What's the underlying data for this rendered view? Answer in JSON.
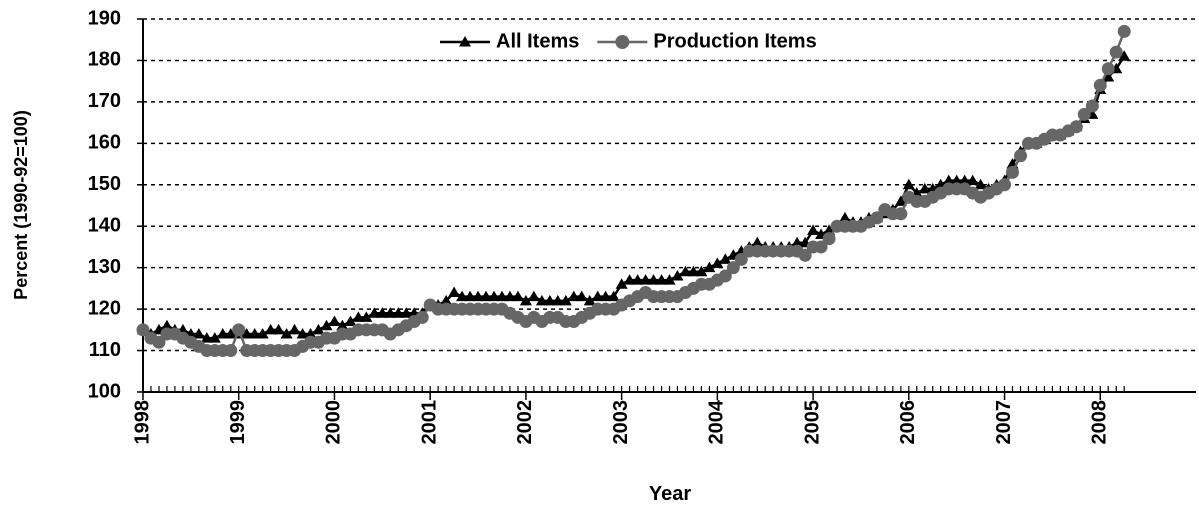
{
  "chart_data": {
    "type": "line",
    "xlabel": "Year",
    "ylabel": "Percent (1990-92=100)",
    "x": [
      1998,
      1998.083,
      1998.167,
      1998.25,
      1998.333,
      1998.417,
      1998.5,
      1998.583,
      1998.667,
      1998.75,
      1998.833,
      1998.917,
      1999,
      1999.083,
      1999.167,
      1999.25,
      1999.333,
      1999.417,
      1999.5,
      1999.583,
      1999.667,
      1999.75,
      1999.833,
      1999.917,
      2000,
      2000.083,
      2000.167,
      2000.25,
      2000.333,
      2000.417,
      2000.5,
      2000.583,
      2000.667,
      2000.75,
      2000.833,
      2000.917,
      2001,
      2001.083,
      2001.167,
      2001.25,
      2001.333,
      2001.417,
      2001.5,
      2001.583,
      2001.667,
      2001.75,
      2001.833,
      2001.917,
      2002,
      2002.083,
      2002.167,
      2002.25,
      2002.333,
      2002.417,
      2002.5,
      2002.583,
      2002.667,
      2002.75,
      2002.833,
      2002.917,
      2003,
      2003.083,
      2003.167,
      2003.25,
      2003.333,
      2003.417,
      2003.5,
      2003.583,
      2003.667,
      2003.75,
      2003.833,
      2003.917,
      2004,
      2004.083,
      2004.167,
      2004.25,
      2004.333,
      2004.417,
      2004.5,
      2004.583,
      2004.667,
      2004.75,
      2004.833,
      2004.917,
      2005,
      2005.083,
      2005.167,
      2005.25,
      2005.333,
      2005.417,
      2005.5,
      2005.583,
      2005.667,
      2005.75,
      2005.833,
      2005.917,
      2006,
      2006.083,
      2006.167,
      2006.25,
      2006.333,
      2006.417,
      2006.5,
      2006.583,
      2006.667,
      2006.75,
      2006.833,
      2006.917,
      2007,
      2007.083,
      2007.167,
      2007.25,
      2007.333,
      2007.417,
      2007.5,
      2007.583,
      2007.667,
      2007.75,
      2007.833,
      2007.917,
      2008,
      2008.083,
      2008.167,
      2008.25
    ],
    "series": [
      {
        "name": "All Items",
        "color": "#000000",
        "marker": "triangle",
        "values": [
          115,
          114,
          115,
          116,
          115,
          115,
          114,
          114,
          113,
          113,
          114,
          114,
          114,
          114,
          114,
          114,
          115,
          115,
          114,
          115,
          114,
          114,
          115,
          116,
          117,
          116,
          117,
          118,
          118,
          119,
          119,
          119,
          119,
          119,
          119,
          119,
          121,
          121,
          122,
          124,
          123,
          123,
          123,
          123,
          123,
          123,
          123,
          123,
          122,
          123,
          122,
          122,
          122,
          122,
          123,
          123,
          122,
          123,
          123,
          123,
          126,
          127,
          127,
          127,
          127,
          127,
          127,
          128,
          129,
          129,
          129,
          130,
          131,
          132,
          133,
          134,
          135,
          136,
          135,
          135,
          135,
          135,
          136,
          136,
          139,
          138,
          139,
          140,
          142,
          141,
          141,
          142,
          142,
          143,
          144,
          146,
          150,
          148,
          149,
          149,
          150,
          151,
          151,
          151,
          151,
          150,
          149,
          150,
          151,
          155,
          158,
          160,
          160,
          161,
          162,
          162,
          163,
          164,
          166,
          167,
          173,
          176,
          178,
          181
        ]
      },
      {
        "name": "Production Items",
        "color": "#666666",
        "marker": "circle",
        "values": [
          115,
          113,
          112,
          114,
          114,
          113,
          112,
          111,
          110,
          110,
          110,
          110,
          115,
          110,
          110,
          110,
          110,
          110,
          110,
          110,
          111,
          112,
          112,
          113,
          113,
          114,
          114,
          115,
          115,
          115,
          115,
          114,
          115,
          116,
          117,
          118,
          121,
          120,
          120,
          120,
          120,
          120,
          120,
          120,
          120,
          120,
          119,
          118,
          117,
          118,
          117,
          118,
          118,
          117,
          117,
          118,
          119,
          120,
          120,
          120,
          121,
          122,
          123,
          124,
          123,
          123,
          123,
          123,
          124,
          125,
          126,
          126,
          127,
          128,
          130,
          132,
          134,
          134,
          134,
          134,
          134,
          134,
          134,
          133,
          135,
          135,
          137,
          140,
          140,
          140,
          140,
          141,
          142,
          144,
          143,
          143,
          147,
          146,
          146,
          147,
          148,
          149,
          149,
          149,
          148,
          147,
          148,
          149,
          150,
          153,
          157,
          160,
          160,
          161,
          162,
          162,
          163,
          164,
          167,
          169,
          174,
          178,
          182,
          187
        ]
      }
    ],
    "xlim": [
      1998,
      2009
    ],
    "xticks": [
      1998,
      1999,
      2000,
      2001,
      2002,
      2003,
      2004,
      2005,
      2006,
      2007,
      2008
    ],
    "ylim": [
      100,
      190
    ],
    "yticks": [
      100,
      110,
      120,
      130,
      140,
      150,
      160,
      170,
      180,
      190
    ],
    "grid": true,
    "legend": "top"
  }
}
